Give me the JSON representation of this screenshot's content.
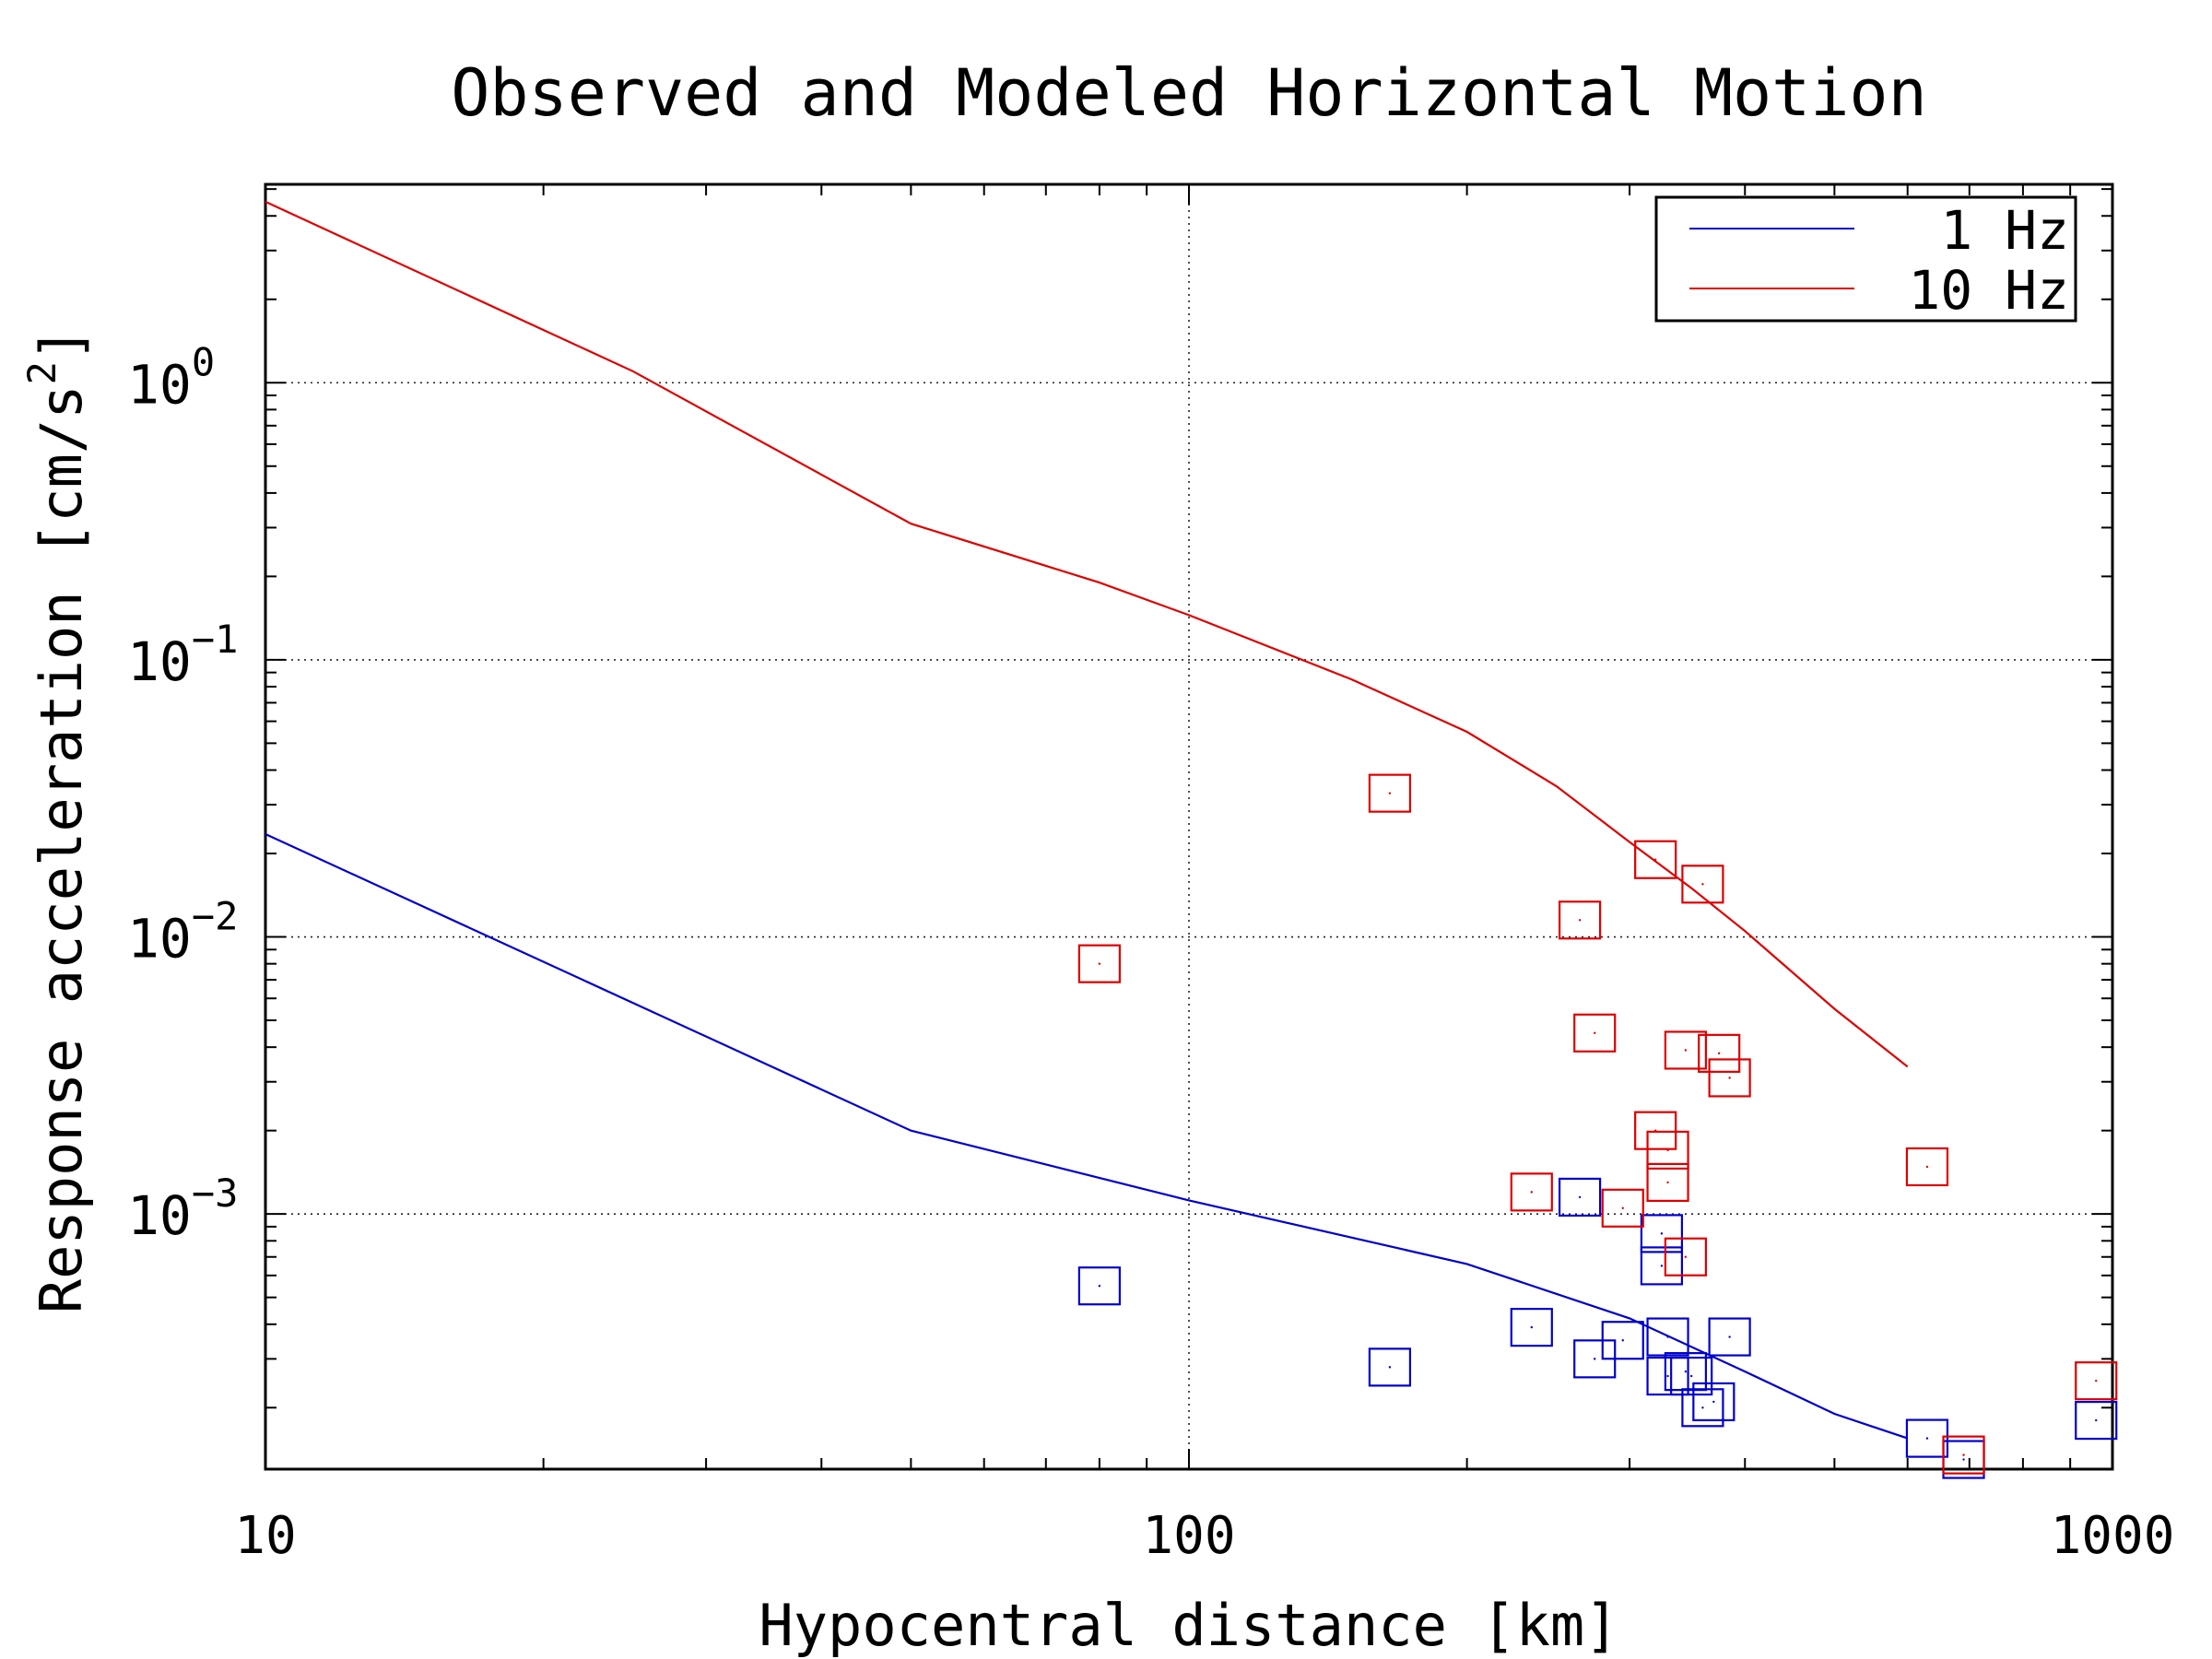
{
  "chart_data": {
    "type": "scatter",
    "title": "Observed and Modeled Horizontal Motion",
    "xlabel": "Hypocentral distance [km]",
    "ylabel_main": "Response acceleration [cm/s",
    "ylabel_exp": "2",
    "ylabel_end": "]",
    "x_scale": "log",
    "y_scale": "log",
    "xlim": [
      10,
      1000
    ],
    "ylim": [
      0.00012,
      5.2
    ],
    "grid": true,
    "legend_position": "top-right",
    "x_ticks": [
      {
        "value": 10,
        "label": "10"
      },
      {
        "value": 100,
        "label": "100"
      },
      {
        "value": 1000,
        "label": "1000"
      }
    ],
    "y_ticks": [
      {
        "value": 1,
        "base": "10",
        "exp": "0"
      },
      {
        "value": 0.1,
        "base": "10",
        "exp": "−1"
      },
      {
        "value": 0.01,
        "base": "10",
        "exp": "−2"
      },
      {
        "value": 0.001,
        "base": "10",
        "exp": "−3"
      }
    ],
    "series": [
      {
        "name": "1 Hz",
        "color": "#0000cc",
        "model": [
          [
            10,
            0.0235
          ],
          [
            50,
            0.002
          ],
          [
            100,
            0.00112
          ],
          [
            200,
            0.00066
          ],
          [
            300,
            0.00042
          ],
          [
            400,
            0.00027
          ],
          [
            500,
            0.00019
          ],
          [
            600,
            0.000155
          ]
        ],
        "observed": [
          [
            80,
            0.00055
          ],
          [
            165,
            0.00028
          ],
          [
            235,
            0.00039
          ],
          [
            265,
            0.00115
          ],
          [
            275,
            0.0003
          ],
          [
            295,
            0.00035
          ],
          [
            325,
            0.00085
          ],
          [
            325,
            0.00065
          ],
          [
            330,
            0.00036
          ],
          [
            330,
            0.00026
          ],
          [
            345,
            0.00027
          ],
          [
            350,
            0.00026
          ],
          [
            360,
            0.0002
          ],
          [
            370,
            0.00021
          ],
          [
            385,
            0.00036
          ],
          [
            630,
            0.000155
          ],
          [
            690,
            0.00013
          ],
          [
            960,
            0.00018
          ]
        ]
      },
      {
        "name": "10 Hz",
        "color": "#dd0000",
        "model": [
          [
            10,
            4.5
          ],
          [
            25,
            1.1
          ],
          [
            50,
            0.31
          ],
          [
            80,
            0.19
          ],
          [
            100,
            0.145
          ],
          [
            150,
            0.085
          ],
          [
            200,
            0.055
          ],
          [
            250,
            0.035
          ],
          [
            300,
            0.022
          ],
          [
            350,
            0.015
          ],
          [
            400,
            0.0105
          ],
          [
            500,
            0.0055
          ],
          [
            600,
            0.0034
          ]
        ],
        "observed": [
          [
            80,
            0.008
          ],
          [
            165,
            0.033
          ],
          [
            235,
            0.0012
          ],
          [
            265,
            0.0115
          ],
          [
            275,
            0.0045
          ],
          [
            295,
            0.00105
          ],
          [
            320,
            0.019
          ],
          [
            320,
            0.002
          ],
          [
            330,
            0.0017
          ],
          [
            330,
            0.0013
          ],
          [
            345,
            0.0039
          ],
          [
            345,
            0.0007
          ],
          [
            360,
            0.0155
          ],
          [
            375,
            0.0038
          ],
          [
            385,
            0.0031
          ],
          [
            630,
            0.00148
          ],
          [
            690,
            0.000135
          ],
          [
            960,
            0.00025
          ]
        ]
      }
    ]
  }
}
